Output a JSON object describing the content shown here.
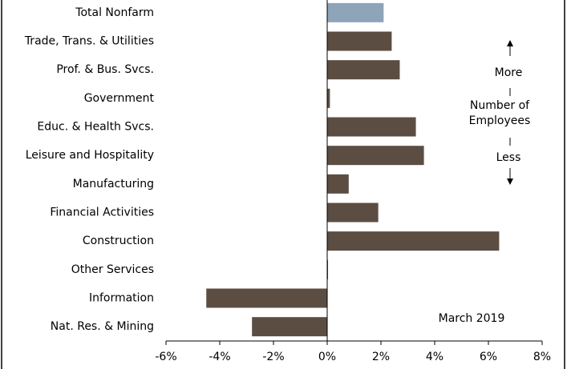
{
  "chart_data": {
    "type": "bar",
    "orientation": "horizontal",
    "categories": [
      "Total Nonfarm",
      "Trade, Trans. & Utilities",
      "Prof. & Bus. Svcs.",
      "Government",
      "Educ. & Health Svcs.",
      "Leisure and Hospitality",
      "Manufacturing",
      "Financial Activities",
      "Construction",
      "Other Services",
      "Information",
      "Nat. Res. & Mining"
    ],
    "values": [
      2.1,
      2.4,
      2.7,
      0.1,
      3.3,
      3.6,
      0.8,
      1.9,
      6.4,
      0.03,
      -4.5,
      -2.8
    ],
    "colors": [
      "#8ea4b8",
      "#5c4d42",
      "#5c4d42",
      "#5c4d42",
      "#5c4d42",
      "#5c4d42",
      "#5c4d42",
      "#5c4d42",
      "#5c4d42",
      "#5c4d42",
      "#5c4d42",
      "#5c4d42"
    ],
    "xlim": [
      -6,
      8
    ],
    "xticks": [
      {
        "value": -6,
        "label": "-6%"
      },
      {
        "value": -4,
        "label": "-4%"
      },
      {
        "value": -2,
        "label": "-2%"
      },
      {
        "value": 0,
        "label": "0%"
      },
      {
        "value": 2,
        "label": "2%"
      },
      {
        "value": 4,
        "label": "4%"
      },
      {
        "value": 6,
        "label": "6%"
      },
      {
        "value": 8,
        "label": "8%"
      }
    ],
    "annotations": [
      "More",
      "Number of",
      "Employees",
      "Less",
      "March 2019"
    ]
  }
}
